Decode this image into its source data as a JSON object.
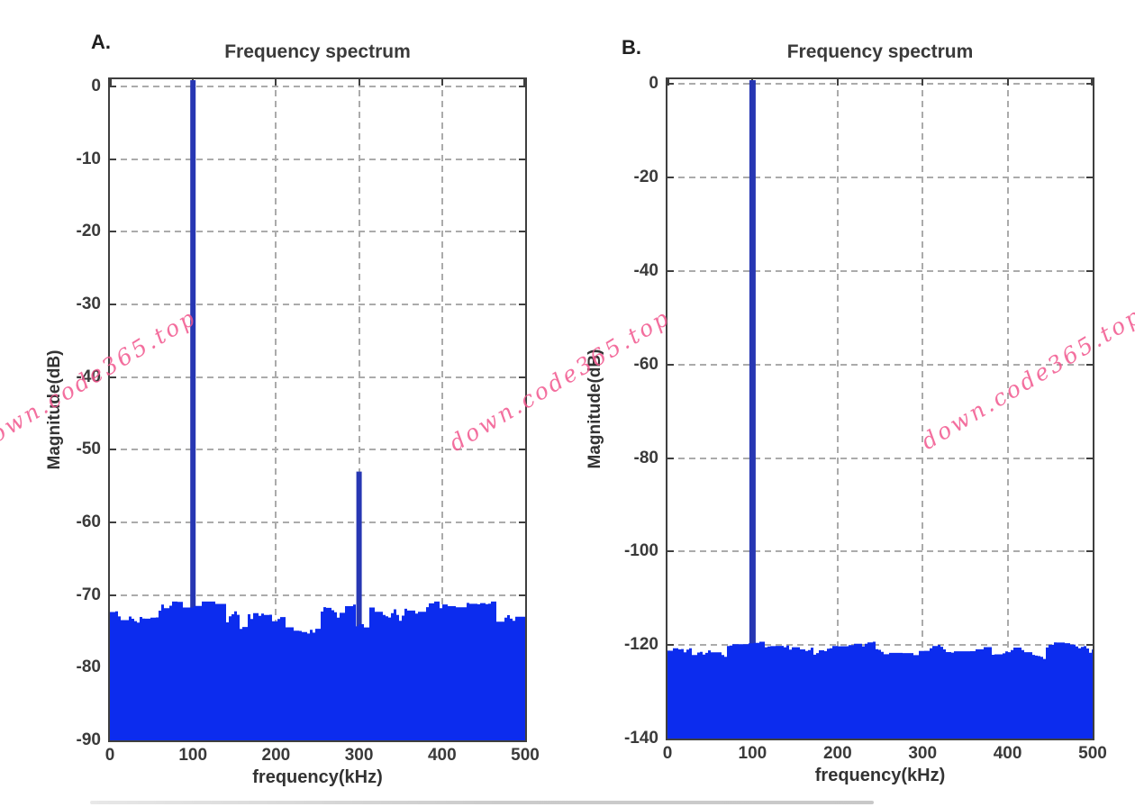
{
  "watermark": {
    "text": "down.code365.top",
    "color": "#f2568e"
  },
  "chart_data": [
    {
      "panel_label": "A.",
      "type": "line",
      "title": "Frequency spectrum",
      "xlabel": "frequency(kHz)",
      "ylabel": "Magnitude(dB)",
      "xlim": [
        0,
        500
      ],
      "ylim": [
        -90,
        0
      ],
      "xticks": [
        0,
        100,
        200,
        300,
        400,
        500
      ],
      "yticks": [
        0,
        -10,
        -20,
        -30,
        -40,
        -50,
        -60,
        -70,
        -80,
        -90
      ],
      "grid": true,
      "grid_style": "dashed",
      "series_description": "FFT magnitude spectrum: carrier tone at 100 kHz (0 dB), spur at 300 kHz (~-53 dB), noise floor near -73 dB",
      "peaks": [
        {
          "frequency_khz": 100,
          "magnitude_db": 0
        },
        {
          "frequency_khz": 300,
          "magnitude_db": -53
        }
      ],
      "noise_floor_db": -73,
      "line_color": "#0c2cee",
      "peak_color": "#2737b3"
    },
    {
      "panel_label": "B.",
      "type": "line",
      "title": "Frequency spectrum",
      "xlabel": "frequency(kHz)",
      "ylabel": "Magnitude(dB)",
      "xlim": [
        0,
        500
      ],
      "ylim": [
        -140,
        0
      ],
      "xticks": [
        0,
        100,
        200,
        300,
        400,
        500
      ],
      "yticks": [
        0,
        -20,
        -40,
        -60,
        -80,
        -100,
        -120,
        -140
      ],
      "grid": true,
      "grid_style": "dashed",
      "series_description": "FFT magnitude spectrum: single tone at 100 kHz (0 dB), noise floor near -121 dB",
      "peaks": [
        {
          "frequency_khz": 100,
          "magnitude_db": 0
        }
      ],
      "noise_floor_db": -121,
      "line_color": "#0c2cee",
      "peak_color": "#2737b3"
    }
  ]
}
